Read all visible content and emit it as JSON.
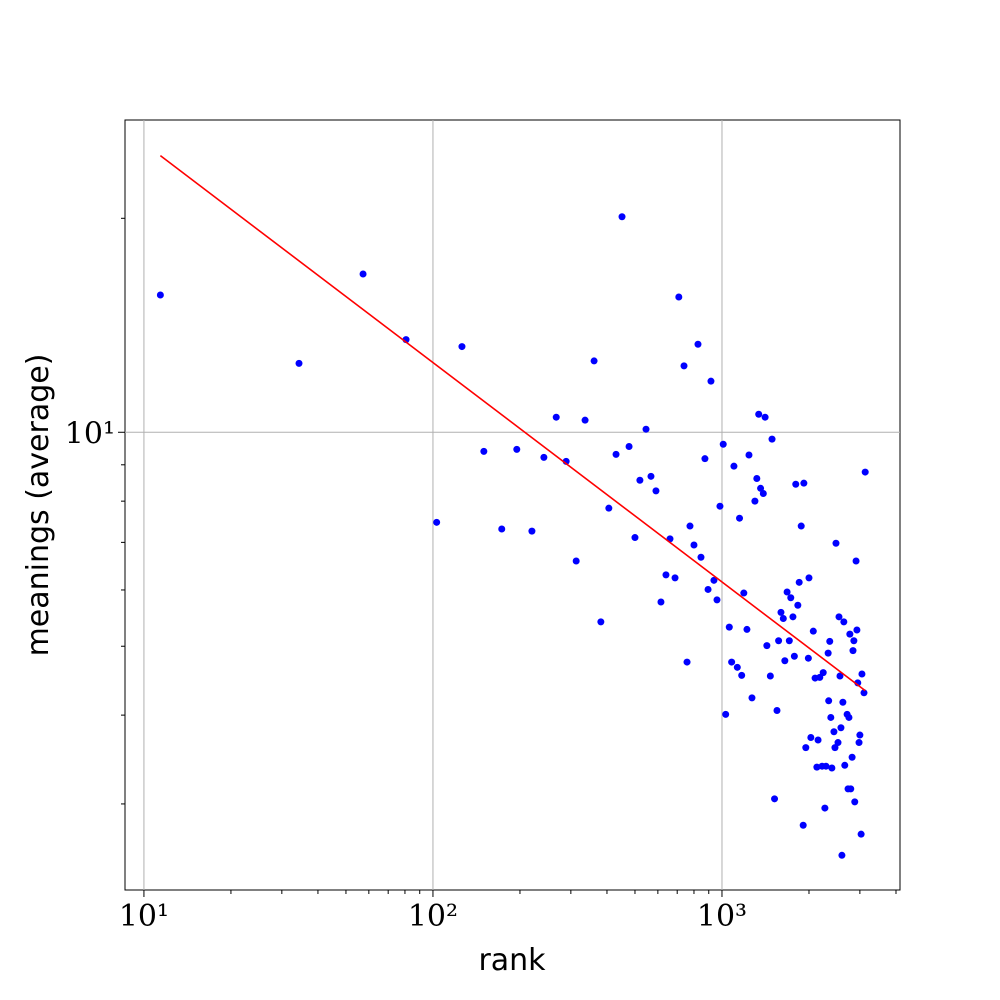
{
  "chart_data": {
    "type": "scatter",
    "xlabel": "rank",
    "ylabel": "meanings (average)",
    "xscale": "log",
    "yscale": "log",
    "grid": true,
    "xlim": [
      8.6,
      4130
    ],
    "ylim": [
      2.27,
      27.5
    ],
    "xticks": [
      {
        "value": 10,
        "label": "10¹"
      },
      {
        "value": 100,
        "label": "10²"
      },
      {
        "value": 1000,
        "label": "10³"
      }
    ],
    "yticks": [
      {
        "value": 10,
        "label": "10¹"
      }
    ],
    "xminorticks": [
      20,
      30,
      40,
      50,
      60,
      70,
      80,
      90,
      200,
      300,
      400,
      500,
      600,
      700,
      800,
      900,
      2000,
      3000,
      4000
    ],
    "yminorticks": [
      3,
      4,
      5,
      6,
      7,
      8,
      9,
      20
    ],
    "series": [
      {
        "color": "#0000ff",
        "x": [
          11.4,
          34.4,
          57.3,
          80.7,
          103,
          126,
          150,
          173,
          195,
          220,
          242,
          267,
          289,
          313,
          336,
          361,
          381,
          406,
          430,
          451,
          477,
          500,
          520,
          546,
          568,
          591,
          615,
          640,
          661,
          688,
          709,
          739,
          757,
          775,
          800,
          826,
          846,
          873,
          895,
          916,
          938,
          961,
          984,
          1010,
          1030,
          1060,
          1080,
          1100,
          1130,
          1150,
          1170,
          1190,
          1220,
          1240,
          1270,
          1300,
          1320,
          1340,
          1360,
          1390,
          1410,
          1430,
          1470,
          1490,
          1520,
          1550,
          1570,
          1600,
          1630,
          1650,
          1680,
          1710,
          1730,
          1760,
          1780,
          1800,
          1830,
          1850,
          1880,
          1910,
          1920,
          1950,
          1990,
          2000,
          2030,
          2070,
          2100,
          2130,
          2150,
          2180,
          2220,
          2240,
          2270,
          2290,
          2330,
          2340,
          2360,
          2380,
          2400,
          2440,
          2460,
          2480,
          2520,
          2540,
          2560,
          2580,
          2600,
          2620,
          2640,
          2660,
          2710,
          2730,
          2750,
          2770,
          2790,
          2820,
          2840,
          2860,
          2880,
          2910,
          2930,
          2950,
          2980,
          3000,
          3030,
          3050,
          3100,
          3130
        ],
        "values": [
          15.6,
          12.5,
          16.7,
          13.5,
          7.47,
          13.2,
          9.4,
          7.31,
          9.46,
          7.26,
          9.22,
          10.5,
          9.1,
          6.59,
          10.4,
          12.6,
          5.41,
          7.82,
          9.31,
          20.1,
          9.55,
          7.11,
          8.56,
          10.1,
          8.67,
          8.27,
          5.77,
          6.3,
          7.08,
          6.24,
          15.5,
          12.4,
          4.75,
          7.38,
          6.94,
          13.3,
          6.67,
          9.18,
          6.01,
          11.8,
          6.19,
          5.81,
          7.87,
          9.62,
          4.01,
          5.32,
          4.75,
          8.96,
          4.67,
          7.57,
          4.55,
          5.94,
          5.28,
          9.29,
          4.23,
          8.0,
          8.61,
          10.6,
          8.34,
          8.2,
          10.5,
          5.01,
          4.54,
          9.78,
          3.05,
          4.06,
          5.09,
          5.58,
          5.47,
          4.77,
          5.96,
          5.09,
          5.85,
          5.5,
          4.84,
          8.45,
          5.71,
          6.15,
          7.38,
          2.8,
          8.48,
          3.6,
          4.81,
          6.24,
          3.72,
          5.25,
          4.51,
          3.38,
          3.69,
          4.52,
          3.39,
          4.59,
          2.96,
          3.39,
          4.89,
          4.19,
          5.08,
          3.97,
          3.37,
          3.79,
          3.6,
          6.98,
          3.66,
          5.5,
          4.54,
          3.84,
          2.54,
          4.17,
          5.41,
          3.4,
          4.01,
          3.15,
          3.97,
          5.2,
          3.15,
          3.49,
          4.93,
          5.09,
          3.02,
          6.59,
          5.27,
          4.44,
          3.66,
          3.75,
          2.72,
          4.57,
          4.3,
          8.79
        ]
      },
      {
        "type": "line",
        "color": "#ff0000",
        "x": [
          11.4,
          3130
        ],
        "values": [
          24.5,
          4.33
        ]
      }
    ]
  }
}
